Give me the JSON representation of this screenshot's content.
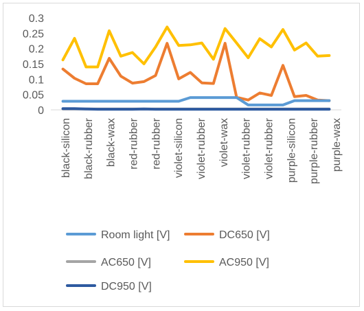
{
  "chart_data": {
    "type": "line",
    "title": "",
    "xlabel": "",
    "ylabel": "",
    "ylim": [
      0,
      0.3
    ],
    "yticks": [
      "0",
      "0.05",
      "0.1",
      "0.15",
      "0.2",
      "0.25",
      "0.3"
    ],
    "ytick_values": [
      0,
      0.05,
      0.1,
      0.15,
      0.2,
      0.25,
      0.3
    ],
    "grid": false,
    "legend_position": "bottom",
    "category_labels": [
      "black-silicon",
      "black-rubber",
      "black-wax",
      "red-rubber",
      "red-rubber",
      "violet-silicon",
      "violet-rubber",
      "violet-wax",
      "violet-rubber",
      "violet-rubber",
      "purple-silicon",
      "purple-rubber",
      "purple-wax"
    ],
    "point_count": 24,
    "series": [
      {
        "name": "Room light [V]",
        "color": "#5B9BD5",
        "values": [
          0.028,
          0.028,
          0.028,
          0.028,
          0.028,
          0.028,
          0.028,
          0.028,
          0.028,
          0.028,
          0.028,
          0.04,
          0.04,
          0.04,
          0.04,
          0.04,
          0.016,
          0.016,
          0.016,
          0.016,
          0.03,
          0.03,
          0.03,
          0.03
        ]
      },
      {
        "name": "DC650 [V]",
        "color": "#ED7D31",
        "values": [
          0.133,
          0.103,
          0.085,
          0.085,
          0.168,
          0.11,
          0.087,
          0.092,
          0.112,
          0.217,
          0.101,
          0.122,
          0.088,
          0.086,
          0.217,
          0.041,
          0.032,
          0.055,
          0.047,
          0.145,
          0.043,
          0.047,
          0.032,
          0.03
        ]
      },
      {
        "name": "AC650 [V]",
        "color": "#A5A5A5",
        "values": [
          0.003,
          0.003,
          0.003,
          0.003,
          0.003,
          0.003,
          0.003,
          0.003,
          0.003,
          0.003,
          0.003,
          0.003,
          0.003,
          0.003,
          0.003,
          0.003,
          0.003,
          0.003,
          0.003,
          0.003,
          0.003,
          0.003,
          0.003,
          0.003
        ]
      },
      {
        "name": "AC950 [V]",
        "color": "#FFC000",
        "values": [
          0.163,
          0.233,
          0.14,
          0.14,
          0.258,
          0.175,
          0.187,
          0.15,
          0.205,
          0.27,
          0.21,
          0.212,
          0.218,
          0.165,
          0.265,
          0.218,
          0.17,
          0.232,
          0.205,
          0.262,
          0.195,
          0.218,
          0.175,
          0.177
        ]
      },
      {
        "name": "DC950 [V]",
        "color": "#2E5AA0",
        "values": [
          0.004,
          0.004,
          0.003,
          0.002,
          0.002,
          0.002,
          0.002,
          0.003,
          0.002,
          0.002,
          0.002,
          0.002,
          0.002,
          0.002,
          0.002,
          0.002,
          0.002,
          0.002,
          0.002,
          0.002,
          0.002,
          0.002,
          0.002,
          0.002
        ]
      }
    ]
  }
}
